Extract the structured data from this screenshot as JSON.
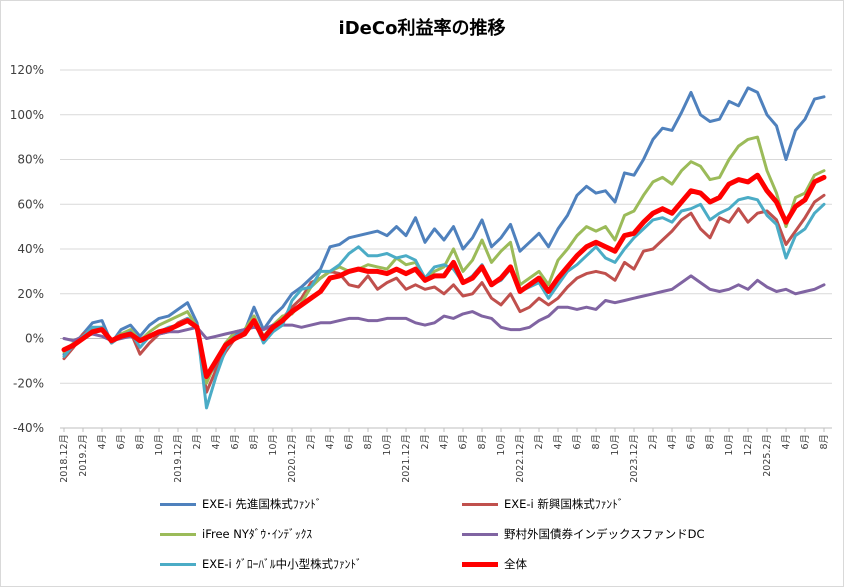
{
  "chart_data": {
    "type": "line",
    "title": "iDeCo利益率の推移",
    "ylim": [
      -40,
      120
    ],
    "yticks": [
      -40,
      -20,
      0,
      20,
      40,
      60,
      80,
      100,
      120
    ],
    "ytick_labels": [
      "-40%",
      "-20%",
      "0%",
      "20%",
      "40%",
      "60%",
      "80%",
      "100%",
      "120%"
    ],
    "grid": true,
    "legend_position": "bottom",
    "x_tick_labels": [
      "2018.12月",
      "2019.2月",
      "4月",
      "6月",
      "8月",
      "10月",
      "2019.12月",
      "2月",
      "4月",
      "6月",
      "8月",
      "10月",
      "2020.12月",
      "2月",
      "4月",
      "6月",
      "8月",
      "10月",
      "2021.12月",
      "2月",
      "4月",
      "6月",
      "8月",
      "10月",
      "2022.12月",
      "2月",
      "4月",
      "6月",
      "8月",
      "10月",
      "2023.12月",
      "2月",
      "4月",
      "6月",
      "8月",
      "10月",
      "12月",
      "2025.2月",
      "4月",
      "6月",
      "8月"
    ],
    "series": [
      {
        "name": "EXE-i 先進国株式ﾌｧﾝﾄﾞ",
        "color": "#4f81bd",
        "width": 3,
        "values": [
          -7,
          -3,
          2,
          7,
          8,
          -2,
          4,
          6,
          1,
          6,
          9,
          10,
          13,
          16,
          7,
          -18,
          -12,
          -3,
          2,
          3,
          14,
          4,
          10,
          14,
          20,
          23,
          27,
          31,
          41,
          42,
          45,
          46,
          47,
          48,
          46,
          50,
          46,
          54,
          43,
          49,
          44,
          50,
          40,
          45,
          53,
          41,
          45,
          51,
          39,
          43,
          47,
          41,
          49,
          55,
          64,
          68,
          65,
          66,
          61,
          74,
          73,
          80,
          89,
          94,
          93,
          101,
          110,
          100,
          97,
          98,
          106,
          104,
          112,
          110,
          100,
          95,
          80,
          93,
          98,
          107,
          108
        ]
      },
      {
        "name": "EXE-i 新興国株式ﾌｧﾝﾄﾞ",
        "color": "#c0504d",
        "width": 3,
        "values": [
          -9,
          -4,
          2,
          4,
          5,
          -2,
          1,
          3,
          -7,
          -2,
          2,
          3,
          7,
          9,
          5,
          -24,
          -14,
          -6,
          0,
          3,
          10,
          -1,
          6,
          9,
          14,
          18,
          25,
          27,
          30,
          29,
          24,
          23,
          28,
          22,
          25,
          27,
          22,
          24,
          22,
          23,
          20,
          24,
          19,
          20,
          25,
          18,
          15,
          20,
          12,
          14,
          18,
          15,
          18,
          23,
          27,
          29,
          30,
          29,
          26,
          34,
          31,
          39,
          40,
          44,
          48,
          53,
          56,
          49,
          45,
          54,
          52,
          58,
          52,
          56,
          57,
          53,
          42,
          48,
          54,
          61,
          64
        ]
      },
      {
        "name": "iFree NYﾀﾞｳ･ｲﾝﾃﾞｯｸｽ",
        "color": "#9bbb59",
        "width": 3,
        "values": [
          -6,
          -2,
          1,
          4,
          5,
          -1,
          2,
          4,
          -1,
          3,
          6,
          8,
          10,
          12,
          5,
          -20,
          -10,
          -2,
          3,
          4,
          10,
          1,
          6,
          10,
          11,
          16,
          23,
          27,
          30,
          32,
          30,
          31,
          33,
          32,
          31,
          36,
          33,
          34,
          27,
          30,
          32,
          40,
          30,
          35,
          44,
          34,
          39,
          43,
          24,
          27,
          30,
          24,
          35,
          40,
          46,
          50,
          48,
          50,
          44,
          55,
          57,
          64,
          70,
          72,
          69,
          75,
          79,
          77,
          71,
          72,
          80,
          86,
          89,
          90,
          75,
          65,
          50,
          63,
          65,
          73,
          75
        ]
      },
      {
        "name": "野村外国債券インデックスファンドDC",
        "color": "#8064a2",
        "width": 3,
        "values": [
          0,
          -1,
          1,
          2,
          1,
          -1,
          0,
          1,
          -1,
          1,
          2,
          3,
          3,
          4,
          5,
          0,
          1,
          2,
          3,
          4,
          5,
          4,
          6,
          6,
          6,
          5,
          6,
          7,
          7,
          8,
          9,
          9,
          8,
          8,
          9,
          9,
          9,
          7,
          6,
          7,
          10,
          9,
          11,
          12,
          10,
          9,
          5,
          4,
          4,
          5,
          8,
          10,
          14,
          14,
          13,
          14,
          13,
          17,
          16,
          17,
          18,
          19,
          20,
          21,
          22,
          25,
          28,
          25,
          22,
          21,
          22,
          24,
          22,
          26,
          23,
          21,
          22,
          20,
          21,
          22,
          24
        ]
      },
      {
        "name": "EXE-i ｸﾞﾛｰﾊﾞﾙ中小型株式ﾌｧﾝﾄﾞ",
        "color": "#4bacc6",
        "width": 3,
        "values": [
          -8,
          -3,
          1,
          5,
          5,
          -2,
          1,
          3,
          -4,
          1,
          3,
          5,
          6,
          9,
          5,
          -31,
          -17,
          -5,
          1,
          2,
          8,
          -2,
          3,
          6,
          17,
          22,
          23,
          30,
          30,
          33,
          38,
          41,
          37,
          37,
          38,
          36,
          37,
          35,
          27,
          32,
          33,
          31,
          25,
          28,
          33,
          24,
          26,
          31,
          21,
          23,
          25,
          18,
          24,
          30,
          33,
          37,
          41,
          36,
          34,
          40,
          45,
          49,
          53,
          54,
          52,
          57,
          58,
          60,
          53,
          56,
          58,
          62,
          63,
          62,
          55,
          51,
          36,
          46,
          49,
          56,
          60
        ]
      },
      {
        "name": "全体",
        "color": "#ff0000",
        "width": 5,
        "values": [
          -5,
          -3,
          0,
          3,
          4,
          -1,
          1,
          2,
          -1,
          1,
          3,
          4,
          6,
          8,
          5,
          -17,
          -10,
          -3,
          0,
          2,
          8,
          0,
          5,
          8,
          12,
          15,
          18,
          21,
          27,
          28,
          30,
          31,
          30,
          30,
          29,
          31,
          29,
          31,
          26,
          28,
          28,
          34,
          25,
          27,
          32,
          24,
          27,
          32,
          21,
          24,
          27,
          21,
          27,
          32,
          37,
          41,
          43,
          41,
          39,
          46,
          47,
          52,
          56,
          58,
          56,
          61,
          66,
          65,
          61,
          63,
          69,
          71,
          70,
          73,
          66,
          61,
          52,
          59,
          62,
          70,
          72
        ]
      }
    ]
  }
}
